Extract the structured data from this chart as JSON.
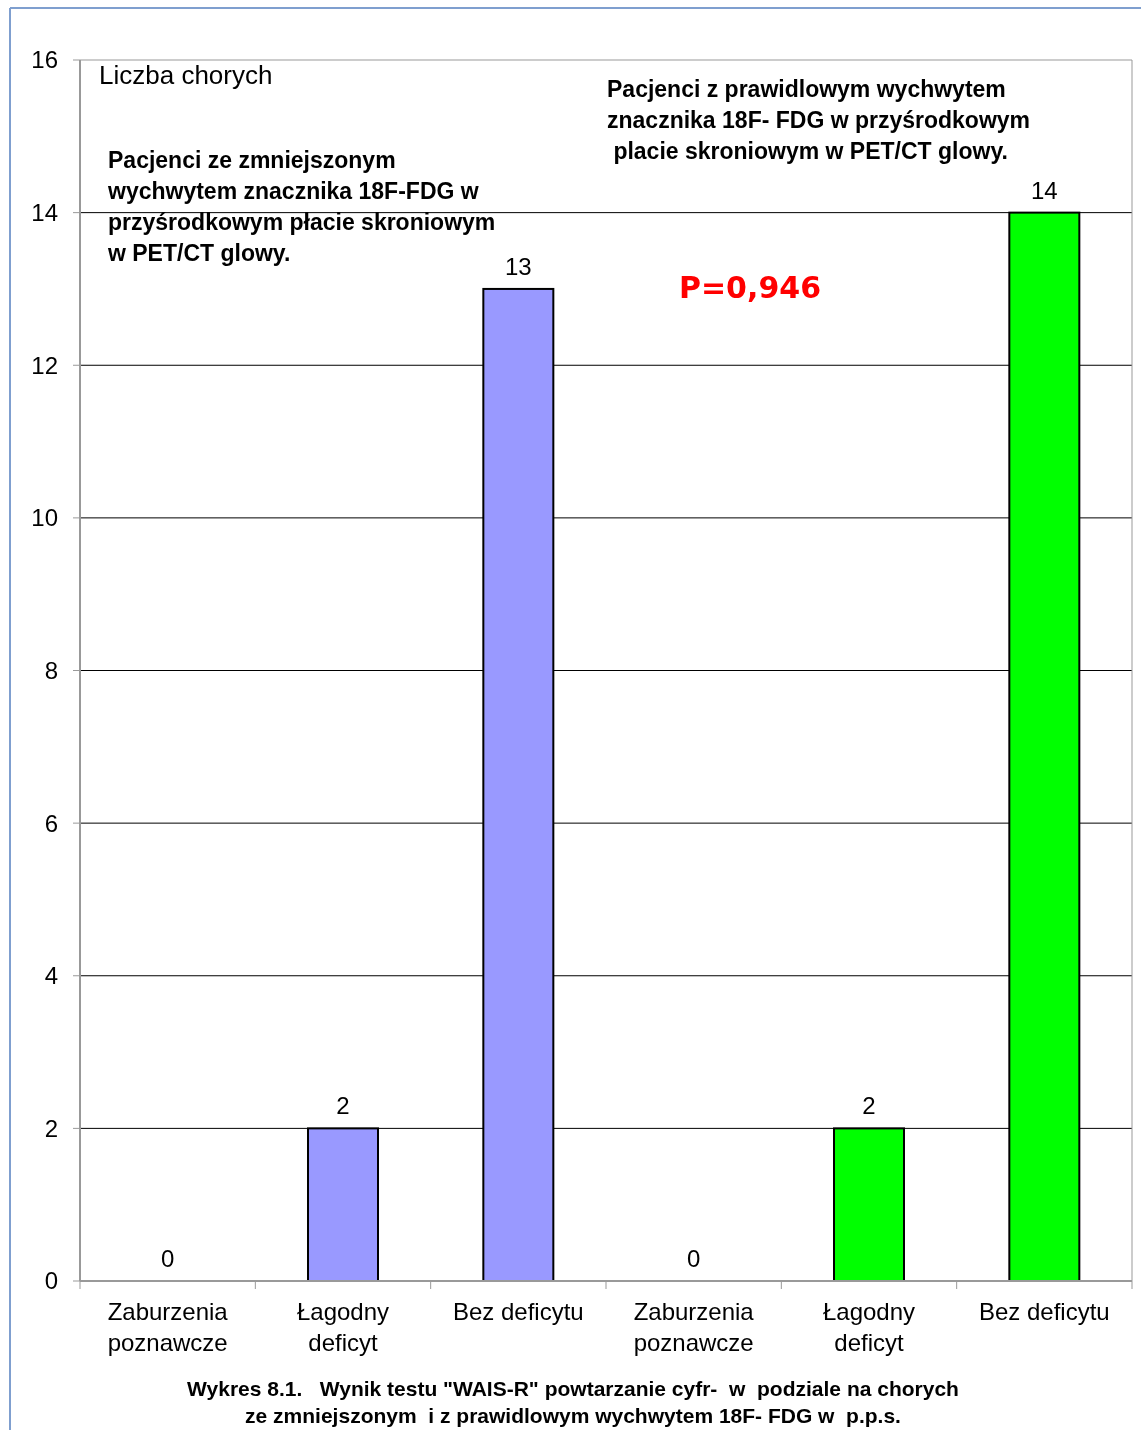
{
  "chart_data": {
    "type": "bar",
    "ylabel": "Liczba chorych",
    "categories": [
      "Zaburzenia\npoznawcze",
      "Łagodny\ndeficyt",
      "Bez deficytu",
      "Zaburzenia\npoznawcze",
      "Łagodny\ndeficyt",
      "Bez deficytu"
    ],
    "values": [
      0,
      2,
      13,
      0,
      2,
      14
    ],
    "colors": [
      "#9999ff",
      "#9999ff",
      "#9999ff",
      "#00ff00",
      "#00ff00",
      "#00ff00"
    ],
    "ylim": [
      0,
      16
    ],
    "yticks": [
      0,
      2,
      4,
      6,
      8,
      10,
      12,
      14,
      16
    ],
    "grid": "y",
    "data_labels": true,
    "annotations": [
      "Pacjenci ze zmniejszonym\nwychwytem znacznika 18F-FDG w\nprzyśrodkowym płacie skroniowym\nw PET/CT glowy.",
      "Pacjenci z prawidlowym wychwytem\nznacznika 18F- FDG w przyśrodkowym\n placie skroniowym w PET/CT glowy.",
      "P=0,946",
      "Wykres 8.1.   Wynik testu \"WAIS-R\" powtarzanie cyfr-  w  podziale na chorych\nze zmniejszonym  i z prawidlowym wychwytem 18F- FDG w  p.p.s."
    ]
  }
}
